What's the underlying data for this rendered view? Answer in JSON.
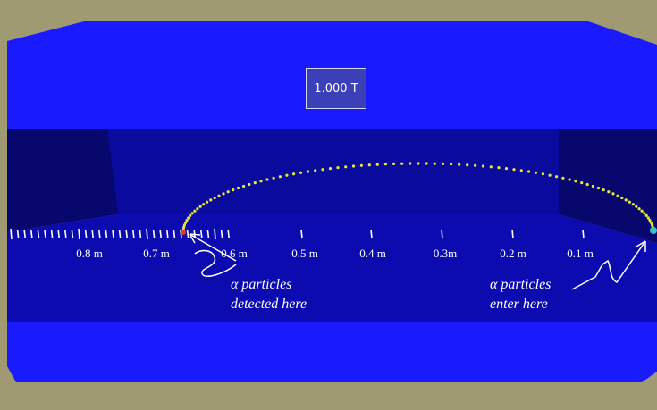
{
  "field_display": {
    "value": "1.000 T"
  },
  "ruler": {
    "labels": [
      "0.8 m",
      "0.7 m",
      "0.6 m",
      "0.5 m",
      "0.4 m",
      "0.3m",
      "0.2 m",
      "0.1 m"
    ]
  },
  "annotations": {
    "detected_line1": "α particles",
    "detected_line2": "detected here",
    "enter_line1": "α particles",
    "enter_line2": "enter here"
  },
  "colors": {
    "background": "#9f9a72",
    "chamber_outer": "#1a1aff",
    "chamber_inner": "#0a0a9a",
    "trajectory": "#e8e83a",
    "entry_marker": "#2ec4c8",
    "detect_marker": "#e03a2a"
  }
}
